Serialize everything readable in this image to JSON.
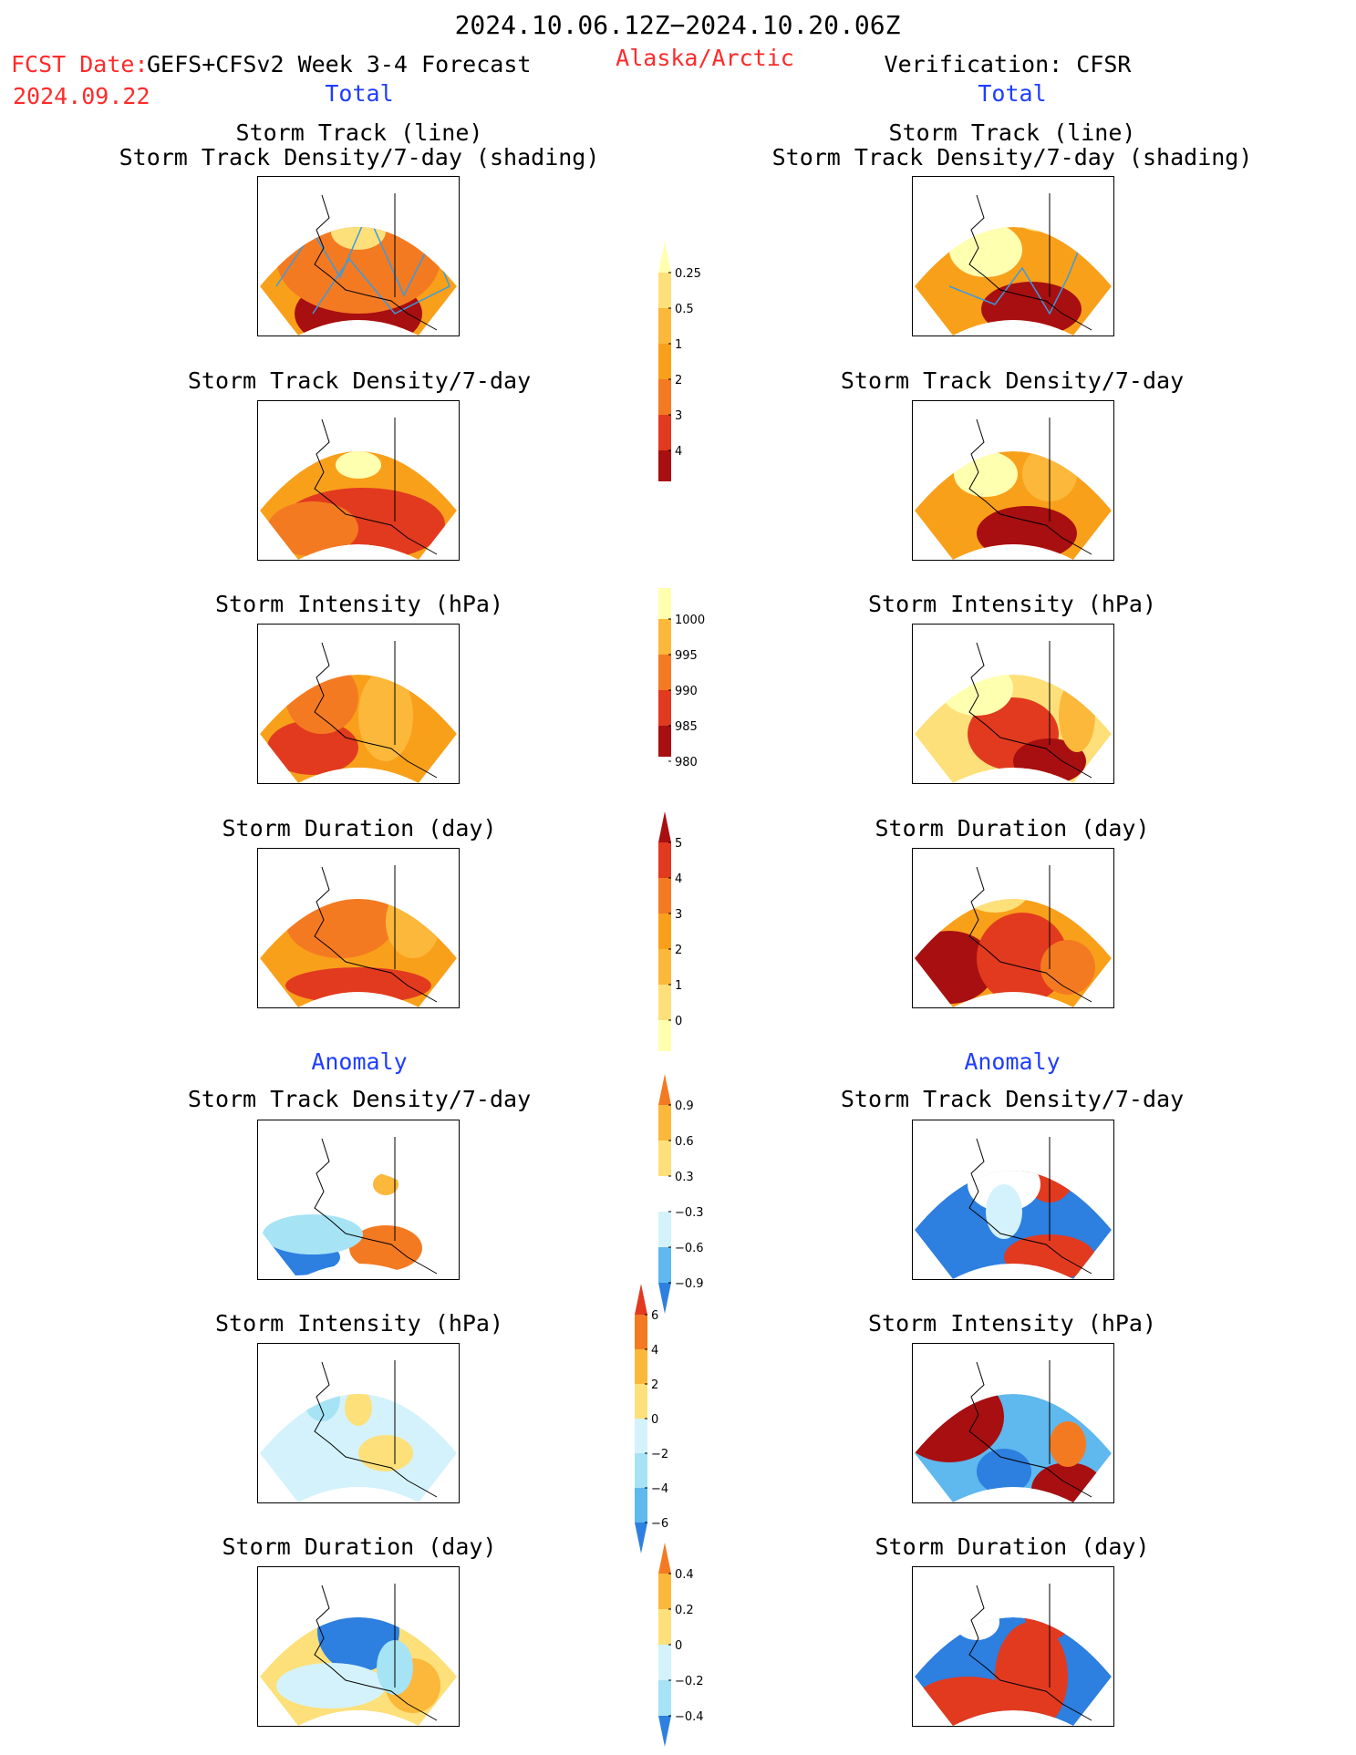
{
  "header": {
    "period": "2024.10.06.12Z−2024.10.20.06Z",
    "fcst_label": "FCST Date:",
    "model": "GEFS+CFSv2 Week 3-4 Forecast",
    "fcst_date": "2024.09.22",
    "region": "Alaska/Arctic",
    "verification": "Verification: CFSR",
    "left_total": "Total",
    "right_total": "Total",
    "left_anomaly": "Anomaly",
    "right_anomaly": "Anomaly"
  },
  "panels": {
    "p1": "Storm Track (line)\nStorm Track Density/7-day (shading)",
    "p2": "Storm Track Density/7-day",
    "p3": "Storm Intensity (hPa)",
    "p4": "Storm Duration (day)",
    "p5": "Storm Track Density/7-day",
    "p6": "Storm Intensity (hPa)",
    "p7": "Storm Duration (day)"
  },
  "colors": {
    "c1": "#ffffb0",
    "c2": "#fde07a",
    "c3": "#fcb83a",
    "c4": "#f9a01b",
    "c5": "#f47a22",
    "c6": "#e23a1f",
    "c7": "#a80f10",
    "b1": "#d4f2fb",
    "b2": "#a6e3f5",
    "b3": "#5fb8ee",
    "b4": "#2d7fe0",
    "b5": "#1b5fcf"
  },
  "chart_data": [
    {
      "type": "heatmap",
      "name": "Storm Track Density/7-day colorbar",
      "levels": [
        "0.25",
        "0.5",
        "1",
        "2",
        "3",
        "4"
      ]
    },
    {
      "type": "heatmap",
      "name": "Storm Intensity colorbar",
      "levels": [
        "1000",
        "995",
        "990",
        "985",
        "980"
      ]
    },
    {
      "type": "heatmap",
      "name": "Storm Duration colorbar",
      "levels": [
        "5",
        "4",
        "3",
        "2",
        "1",
        "0"
      ]
    },
    {
      "type": "heatmap",
      "name": "Track Density anomaly colorbar",
      "levels": [
        "0.9",
        "0.6",
        "0.3",
        "−0.3",
        "−0.6",
        "−0.9"
      ]
    },
    {
      "type": "heatmap",
      "name": "Intensity anomaly colorbar",
      "levels": [
        "6",
        "4",
        "2",
        "0",
        "−2",
        "−4",
        "−6"
      ]
    },
    {
      "type": "heatmap",
      "name": "Duration anomaly colorbar",
      "levels": [
        "0.4",
        "0.2",
        "0",
        "−0.2",
        "−0.4"
      ]
    }
  ]
}
